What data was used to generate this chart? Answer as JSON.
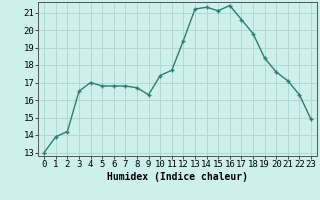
{
  "x": [
    0,
    1,
    2,
    3,
    4,
    5,
    6,
    7,
    8,
    9,
    10,
    11,
    12,
    13,
    14,
    15,
    16,
    17,
    18,
    19,
    20,
    21,
    22,
    23
  ],
  "y": [
    13.0,
    13.9,
    14.2,
    16.5,
    17.0,
    16.8,
    16.8,
    16.8,
    16.7,
    16.3,
    17.4,
    17.7,
    19.4,
    21.2,
    21.3,
    21.1,
    21.4,
    20.6,
    19.8,
    18.4,
    17.6,
    17.1,
    16.3,
    14.9
  ],
  "line_color": "#2e7d6e",
  "bg_color": "#cef0ec",
  "grid_color": "#b0d8d4",
  "xlabel": "Humidex (Indice chaleur)",
  "ylim": [
    12.8,
    21.6
  ],
  "xlim": [
    -0.5,
    23.5
  ],
  "yticks": [
    13,
    14,
    15,
    16,
    17,
    18,
    19,
    20,
    21
  ],
  "xticks": [
    0,
    1,
    2,
    3,
    4,
    5,
    6,
    7,
    8,
    9,
    10,
    11,
    12,
    13,
    14,
    15,
    16,
    17,
    18,
    19,
    20,
    21,
    22,
    23
  ],
  "marker": "+",
  "markersize": 3,
  "linewidth": 1.0,
  "xlabel_fontsize": 7,
  "tick_fontsize": 6.5
}
